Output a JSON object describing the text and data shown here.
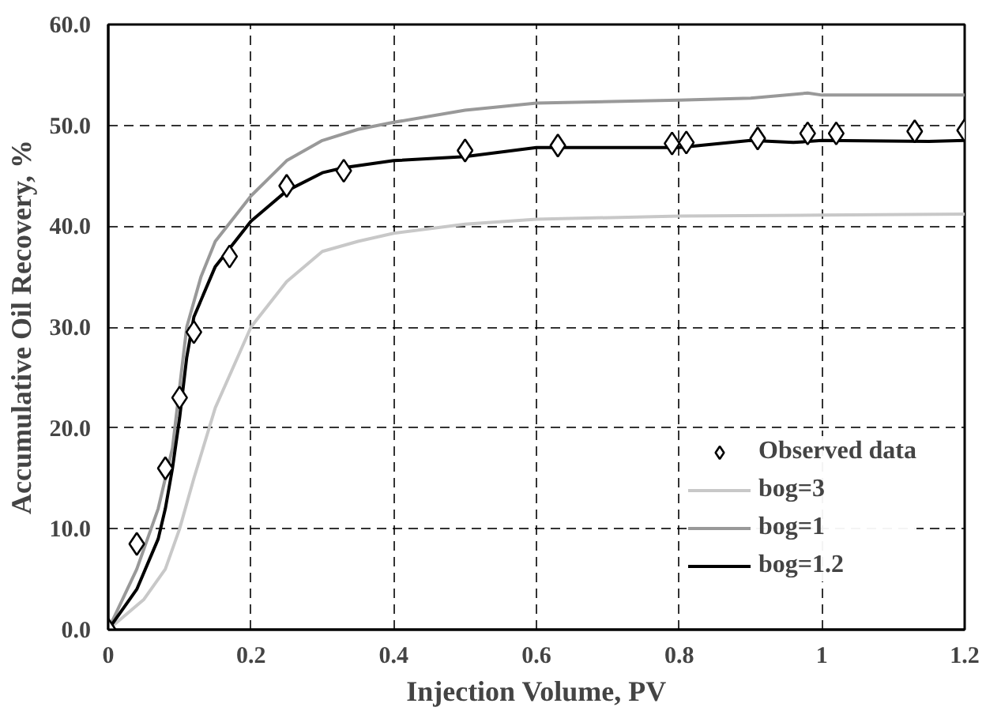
{
  "chart_data": {
    "type": "line",
    "xlabel": "Injection Volume, PV",
    "ylabel": "Accumulative Oil Recovery, %",
    "xlim": [
      0,
      1.2
    ],
    "ylim": [
      0,
      60
    ],
    "xticks": [
      0,
      0.2,
      0.4,
      0.6,
      0.8,
      1,
      1.2
    ],
    "yticks": [
      {
        "value": 0,
        "label": "0.0"
      },
      {
        "value": 10,
        "label": "10.0"
      },
      {
        "value": 20,
        "label": "20.0"
      },
      {
        "value": 30,
        "label": "30.0"
      },
      {
        "value": 40,
        "label": "40.0"
      },
      {
        "value": 50,
        "label": "50.0"
      },
      {
        "value": 60,
        "label": "60.0"
      }
    ],
    "grid": true,
    "legend": "bottom right",
    "series": [
      {
        "name": "Observed data",
        "type": "scatter",
        "marker": "diamond",
        "color": "#000000",
        "x": [
          0,
          0.04,
          0.08,
          0.1,
          0.12,
          0.17,
          0.25,
          0.33,
          0.5,
          0.63,
          0.79,
          0.81,
          0.91,
          0.98,
          1.02,
          1.13,
          1.2
        ],
        "values": [
          0,
          8.5,
          16,
          23,
          29.5,
          37,
          44,
          45.5,
          47.5,
          48,
          48.2,
          48.3,
          48.7,
          49.2,
          49.2,
          49.4,
          49.5
        ]
      },
      {
        "name": "bog=3",
        "color": "#c8c8c8",
        "x": [
          0,
          0.05,
          0.08,
          0.1,
          0.12,
          0.15,
          0.2,
          0.25,
          0.3,
          0.35,
          0.4,
          0.5,
          0.6,
          0.8,
          1.0,
          1.2
        ],
        "values": [
          0,
          3,
          6,
          10,
          15,
          22,
          30,
          34.5,
          37.5,
          38.5,
          39.3,
          40.2,
          40.7,
          41,
          41.1,
          41.2
        ]
      },
      {
        "name": "bog=1",
        "color": "#999999",
        "x": [
          0,
          0.04,
          0.07,
          0.09,
          0.1,
          0.11,
          0.13,
          0.15,
          0.2,
          0.25,
          0.3,
          0.35,
          0.4,
          0.5,
          0.6,
          0.8,
          0.9,
          0.98,
          1.0,
          1.2
        ],
        "values": [
          0,
          6,
          12,
          18,
          24,
          30,
          35,
          38.5,
          43,
          46.5,
          48.5,
          49.6,
          50.3,
          51.5,
          52.2,
          52.5,
          52.7,
          53.2,
          53,
          53
        ]
      },
      {
        "name": "bog=1.2",
        "color": "#000000",
        "x": [
          0,
          0.04,
          0.07,
          0.08,
          0.09,
          0.1,
          0.11,
          0.12,
          0.15,
          0.2,
          0.25,
          0.3,
          0.33,
          0.4,
          0.5,
          0.6,
          0.8,
          0.9,
          0.96,
          1.0,
          1.15,
          1.2
        ],
        "values": [
          0,
          4,
          9,
          12,
          16,
          21,
          27,
          31,
          36,
          40.5,
          43.5,
          45.3,
          45.8,
          46.5,
          46.9,
          47.8,
          47.8,
          48.5,
          48.3,
          48.5,
          48.4,
          48.5
        ]
      }
    ]
  }
}
